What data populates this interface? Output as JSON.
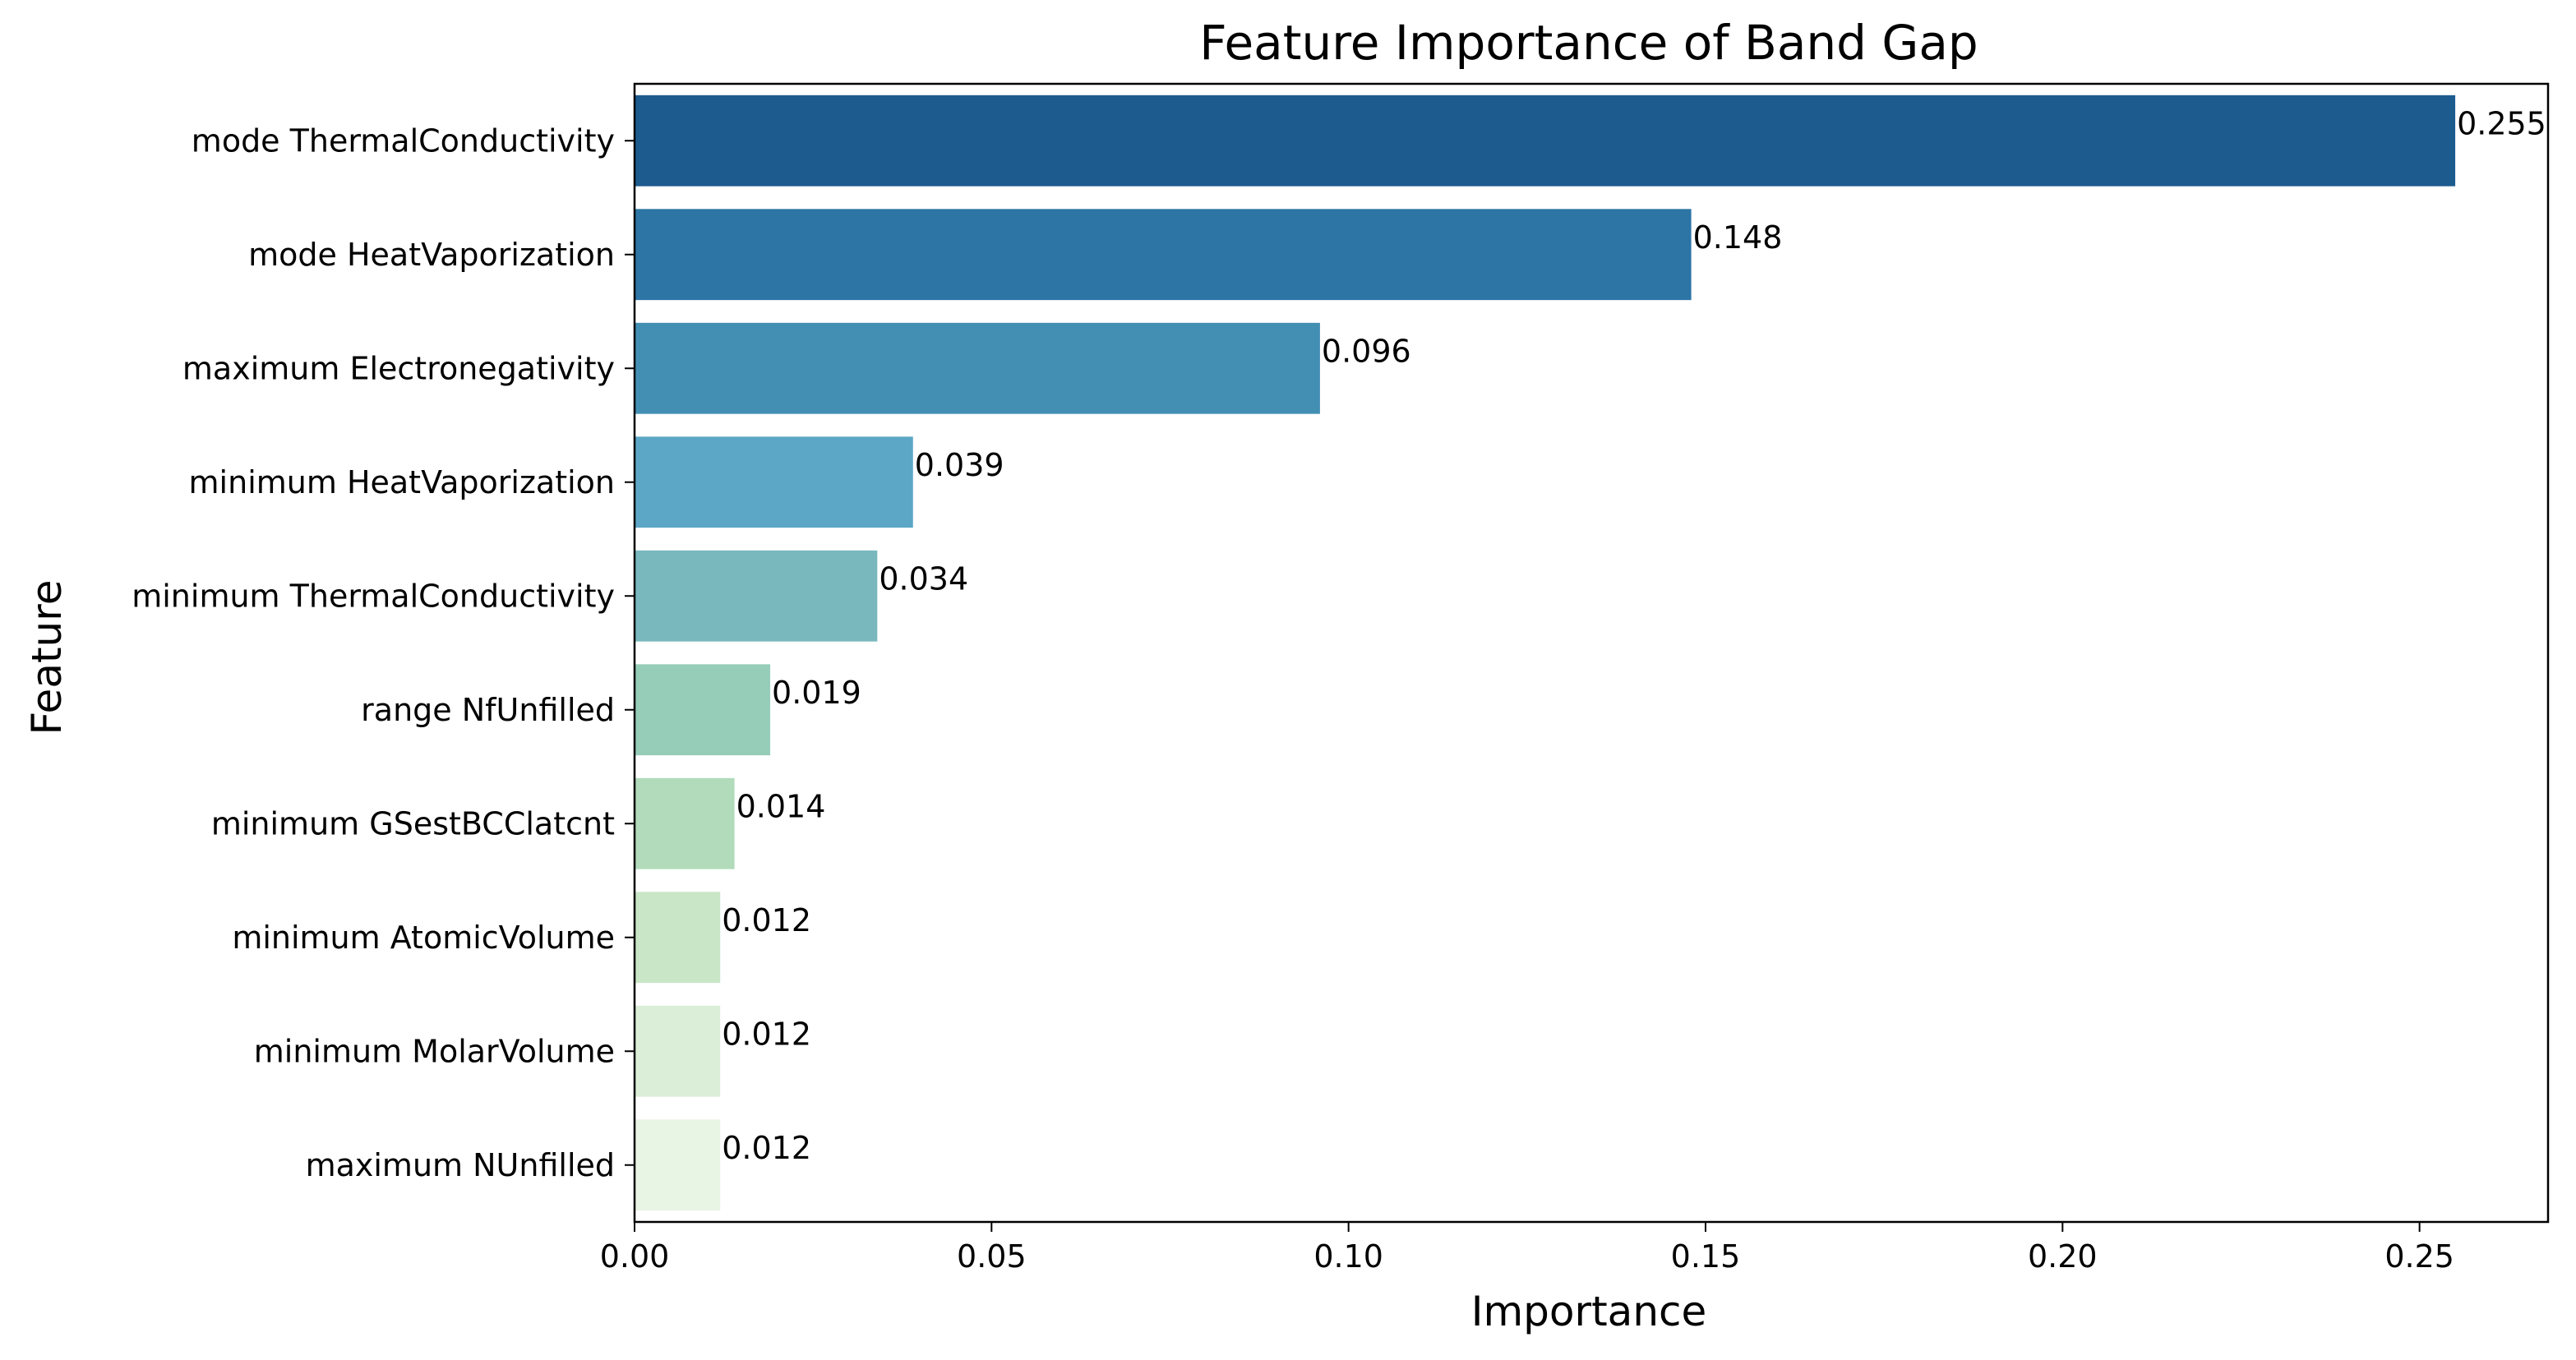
{
  "chart_data": {
    "type": "bar",
    "orientation": "horizontal",
    "title": "Feature Importance of Band Gap",
    "xlabel": "Importance",
    "ylabel": "Feature",
    "xlim": [
      0,
      0.268
    ],
    "xticks": [
      "0.00",
      "0.05",
      "0.10",
      "0.15",
      "0.20",
      "0.25"
    ],
    "grid": false,
    "categories": [
      "mode ThermalConductivity",
      "mode HeatVaporization",
      "maximum Electronegativity",
      "minimum HeatVaporization",
      "minimum ThermalConductivity",
      "range NfUnfilled",
      "minimum GSestBCClatcnt",
      "minimum AtomicVolume",
      "minimum MolarVolume",
      "maximum NUnfilled"
    ],
    "values": [
      0.255,
      0.148,
      0.096,
      0.039,
      0.034,
      0.019,
      0.014,
      0.012,
      0.012,
      0.012
    ],
    "value_labels": [
      "0.255",
      "0.148",
      "0.096",
      "0.039",
      "0.034",
      "0.019",
      "0.014",
      "0.012",
      "0.012",
      "0.012"
    ],
    "colors": [
      "#1d5b8f",
      "#2c75a5",
      "#438fb3",
      "#5ba7c5",
      "#79b9bd",
      "#95cdb8",
      "#b1dbbb",
      "#c9e6c7",
      "#dbeed8",
      "#e9f5e4"
    ]
  }
}
